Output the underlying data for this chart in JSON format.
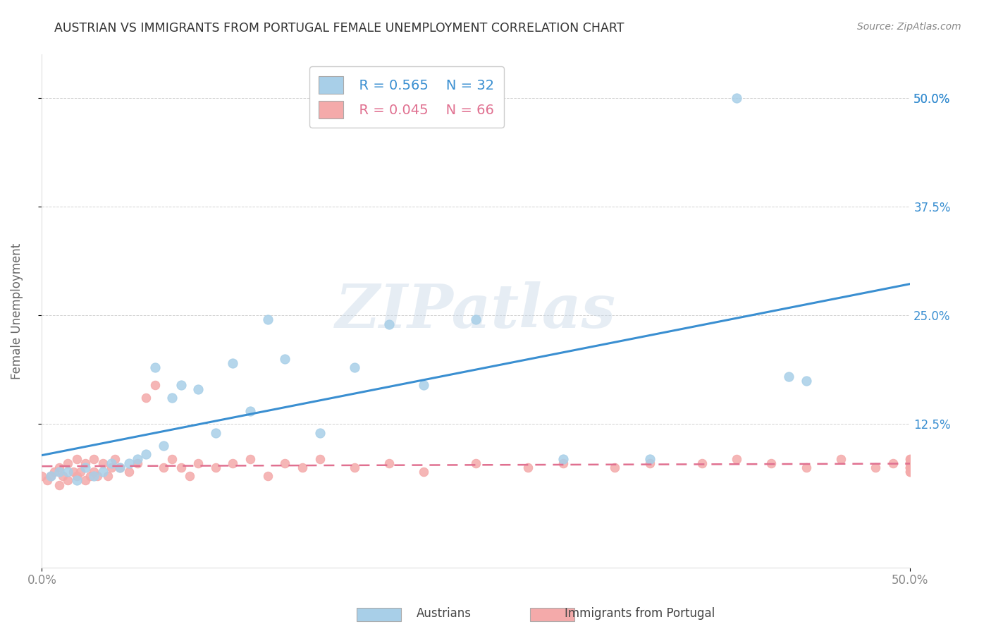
{
  "title": "AUSTRIAN VS IMMIGRANTS FROM PORTUGAL FEMALE UNEMPLOYMENT CORRELATION CHART",
  "source_text": "Source: ZipAtlas.com",
  "ylabel": "Female Unemployment",
  "xlim": [
    0.0,
    0.5
  ],
  "ylim": [
    -0.04,
    0.55
  ],
  "ytick_labels_right": [
    "12.5%",
    "25.0%",
    "37.5%",
    "50.0%"
  ],
  "ytick_vals": [
    0.125,
    0.25,
    0.375,
    0.5
  ],
  "xtick_labels": [
    "0.0%",
    "50.0%"
  ],
  "xtick_vals": [
    0.0,
    0.5
  ],
  "austrians_x": [
    0.005,
    0.01,
    0.015,
    0.02,
    0.025,
    0.03,
    0.035,
    0.04,
    0.045,
    0.05,
    0.055,
    0.06,
    0.065,
    0.07,
    0.075,
    0.08,
    0.09,
    0.1,
    0.11,
    0.12,
    0.13,
    0.14,
    0.16,
    0.18,
    0.2,
    0.22,
    0.25,
    0.3,
    0.35,
    0.4,
    0.43,
    0.44
  ],
  "austrians_y": [
    0.065,
    0.07,
    0.07,
    0.06,
    0.075,
    0.065,
    0.07,
    0.08,
    0.075,
    0.08,
    0.085,
    0.09,
    0.19,
    0.1,
    0.155,
    0.17,
    0.165,
    0.115,
    0.195,
    0.14,
    0.245,
    0.2,
    0.115,
    0.19,
    0.24,
    0.17,
    0.245,
    0.085,
    0.085,
    0.5,
    0.18,
    0.175
  ],
  "portugal_x": [
    0.0,
    0.003,
    0.005,
    0.007,
    0.01,
    0.01,
    0.012,
    0.015,
    0.015,
    0.018,
    0.02,
    0.02,
    0.022,
    0.025,
    0.025,
    0.028,
    0.03,
    0.03,
    0.032,
    0.035,
    0.038,
    0.04,
    0.042,
    0.045,
    0.05,
    0.055,
    0.06,
    0.065,
    0.07,
    0.075,
    0.08,
    0.085,
    0.09,
    0.1,
    0.11,
    0.12,
    0.13,
    0.14,
    0.15,
    0.16,
    0.18,
    0.2,
    0.22,
    0.25,
    0.28,
    0.3,
    0.33,
    0.35,
    0.38,
    0.4,
    0.42,
    0.44,
    0.46,
    0.48,
    0.49,
    0.5,
    0.5,
    0.5,
    0.5,
    0.5,
    0.5,
    0.5,
    0.5,
    0.5,
    0.5,
    0.5
  ],
  "portugal_y": [
    0.065,
    0.06,
    0.065,
    0.07,
    0.055,
    0.075,
    0.065,
    0.06,
    0.08,
    0.07,
    0.065,
    0.085,
    0.07,
    0.06,
    0.08,
    0.065,
    0.07,
    0.085,
    0.065,
    0.08,
    0.065,
    0.075,
    0.085,
    0.075,
    0.07,
    0.08,
    0.155,
    0.17,
    0.075,
    0.085,
    0.075,
    0.065,
    0.08,
    0.075,
    0.08,
    0.085,
    0.065,
    0.08,
    0.075,
    0.085,
    0.075,
    0.08,
    0.07,
    0.08,
    0.075,
    0.08,
    0.075,
    0.08,
    0.08,
    0.085,
    0.08,
    0.075,
    0.085,
    0.075,
    0.08,
    0.085,
    0.075,
    0.08,
    0.07,
    0.08,
    0.075,
    0.085,
    0.07,
    0.08,
    0.075,
    0.08
  ],
  "austrians_color": "#a8cfe8",
  "portugal_color": "#f4aaaa",
  "austrians_line_color": "#3a8fd1",
  "portugal_line_color": "#e07090",
  "legend_R_austrians": "R = 0.565",
  "legend_N_austrians": "N = 32",
  "legend_R_portugal": "R = 0.045",
  "legend_N_portugal": "N = 66",
  "watermark": "ZIPatlas",
  "title_color": "#333333",
  "axis_label_color": "#666666",
  "tick_color": "#888888",
  "grid_color": "#cccccc",
  "right_tick_color": "#3a8fd1",
  "background_color": "#ffffff"
}
